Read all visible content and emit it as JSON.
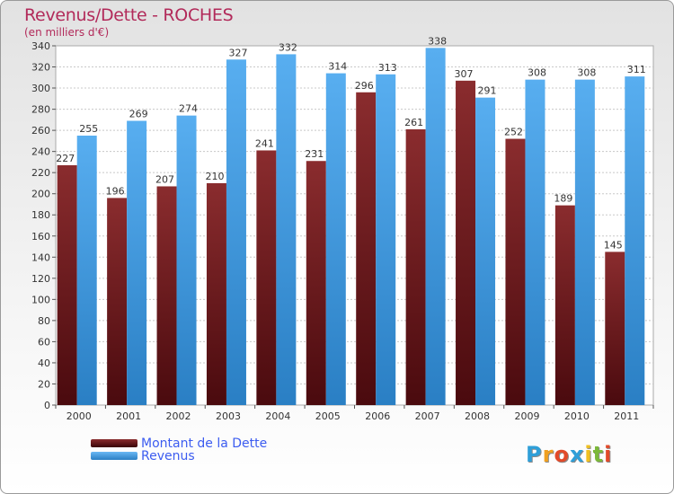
{
  "header": {
    "title": "Revenus/Dette - ROCHES",
    "subtitle": "(en milliers d'€)"
  },
  "logo": {
    "letters": [
      {
        "ch": "P",
        "color": "#2f9fd8"
      },
      {
        "ch": "r",
        "color": "#f0a020"
      },
      {
        "ch": "o",
        "color": "#e24a2a"
      },
      {
        "ch": "x",
        "color": "#2f9fd8"
      },
      {
        "ch": "i",
        "color": "#f0c020"
      },
      {
        "ch": "t",
        "color": "#7cb83a"
      },
      {
        "ch": "i",
        "color": "#e24a2a"
      }
    ]
  },
  "chart_data": {
    "type": "bar",
    "title": "Revenus/Dette - ROCHES",
    "subtitle": "(en milliers d'€)",
    "categories": [
      "2000",
      "2001",
      "2002",
      "2003",
      "2004",
      "2005",
      "2006",
      "2007",
      "2008",
      "2009",
      "2010",
      "2011"
    ],
    "series": [
      {
        "name": "Montant de la Dette",
        "color": "#7a1f24",
        "values": [
          227,
          196,
          207,
          210,
          241,
          231,
          296,
          261,
          307,
          252,
          189,
          145
        ]
      },
      {
        "name": "Revenus",
        "color": "#4aa3e4",
        "values": [
          255,
          269,
          274,
          327,
          332,
          314,
          313,
          338,
          291,
          308,
          308,
          311
        ]
      }
    ],
    "ylim": [
      0,
      340
    ],
    "yticks": [
      0,
      20,
      40,
      60,
      80,
      100,
      120,
      140,
      160,
      180,
      200,
      220,
      240,
      260,
      280,
      300,
      320,
      340
    ],
    "grid": true,
    "legend": "bottom-left"
  }
}
